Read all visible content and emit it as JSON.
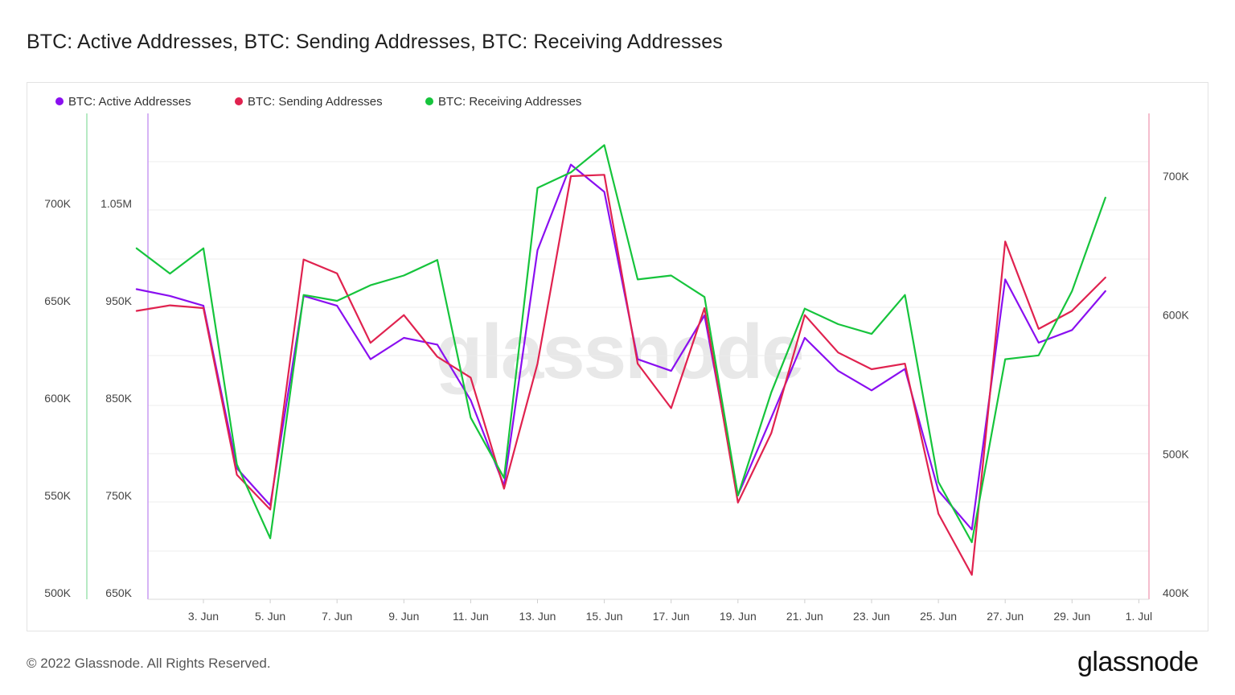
{
  "title": "BTC: Active Addresses, BTC: Sending Addresses, BTC: Receiving Addresses",
  "footer": "© 2022 Glassnode. All Rights Reserved.",
  "brand": "glassnode",
  "watermark": "glassnode",
  "chart_data": {
    "type": "line",
    "x_tick_labels": [
      "3. Jun",
      "5. Jun",
      "7. Jun",
      "9. Jun",
      "11. Jun",
      "13. Jun",
      "15. Jun",
      "17. Jun",
      "19. Jun",
      "21. Jun",
      "23. Jun",
      "25. Jun",
      "27. Jun",
      "29. Jun",
      "1. Jul"
    ],
    "x": [
      "2022-06-01",
      "2022-06-02",
      "2022-06-03",
      "2022-06-04",
      "2022-06-05",
      "2022-06-06",
      "2022-06-07",
      "2022-06-08",
      "2022-06-09",
      "2022-06-10",
      "2022-06-11",
      "2022-06-12",
      "2022-06-13",
      "2022-06-14",
      "2022-06-15",
      "2022-06-16",
      "2022-06-17",
      "2022-06-18",
      "2022-06-19",
      "2022-06-20",
      "2022-06-21",
      "2022-06-22",
      "2022-06-23",
      "2022-06-24",
      "2022-06-25",
      "2022-06-26",
      "2022-06-27",
      "2022-06-28",
      "2022-06-29",
      "2022-06-30"
    ],
    "axes": {
      "receiving_left": {
        "ticks": [
          "700K",
          "650K",
          "600K",
          "550K",
          "500K"
        ],
        "range": [
          500000,
          700000
        ],
        "color": "#00c130"
      },
      "active_left": {
        "ticks": [
          "1.05M",
          "950K",
          "850K",
          "750K",
          "650K"
        ],
        "range": [
          650000,
          1050000
        ],
        "color": "#8a2be2"
      },
      "sending_right": {
        "ticks": [
          "700K",
          "600K",
          "500K",
          "400K"
        ],
        "range": [
          400000,
          700000
        ],
        "color": "#e0225a"
      }
    },
    "grid": true,
    "legend_position": "top-left",
    "series": [
      {
        "name": "BTC: Active Addresses",
        "color": "#8a0ff0",
        "axis": "active_left",
        "values": [
          962000,
          955000,
          945000,
          778000,
          740000,
          955000,
          945000,
          890000,
          912000,
          905000,
          848000,
          760000,
          1002000,
          1090000,
          1062000,
          890000,
          878000,
          935000,
          750000,
          830000,
          912000,
          878000,
          858000,
          880000,
          755000,
          715000,
          972000,
          907000,
          920000,
          960000
        ]
      },
      {
        "name": "BTC: Sending Addresses",
        "color": "#e0224f",
        "axis": "sending_right",
        "values": [
          603000,
          607000,
          605000,
          485000,
          460000,
          640000,
          630000,
          580000,
          600000,
          570000,
          555000,
          475000,
          565000,
          700000,
          701000,
          565000,
          533000,
          605000,
          465000,
          515000,
          600000,
          573000,
          561000,
          565000,
          457000,
          413000,
          653000,
          590000,
          603000,
          627000
        ]
      },
      {
        "name": "BTC: Receiving Addresses",
        "color": "#16c43c",
        "axis": "receiving_left",
        "values": [
          677000,
          664000,
          677000,
          566000,
          528000,
          653000,
          650000,
          658000,
          663000,
          671000,
          590000,
          559000,
          708000,
          716000,
          730000,
          661000,
          663000,
          652000,
          550000,
          603000,
          646000,
          638000,
          633000,
          653000,
          557000,
          526000,
          620000,
          622000,
          655000,
          703000
        ]
      }
    ]
  }
}
